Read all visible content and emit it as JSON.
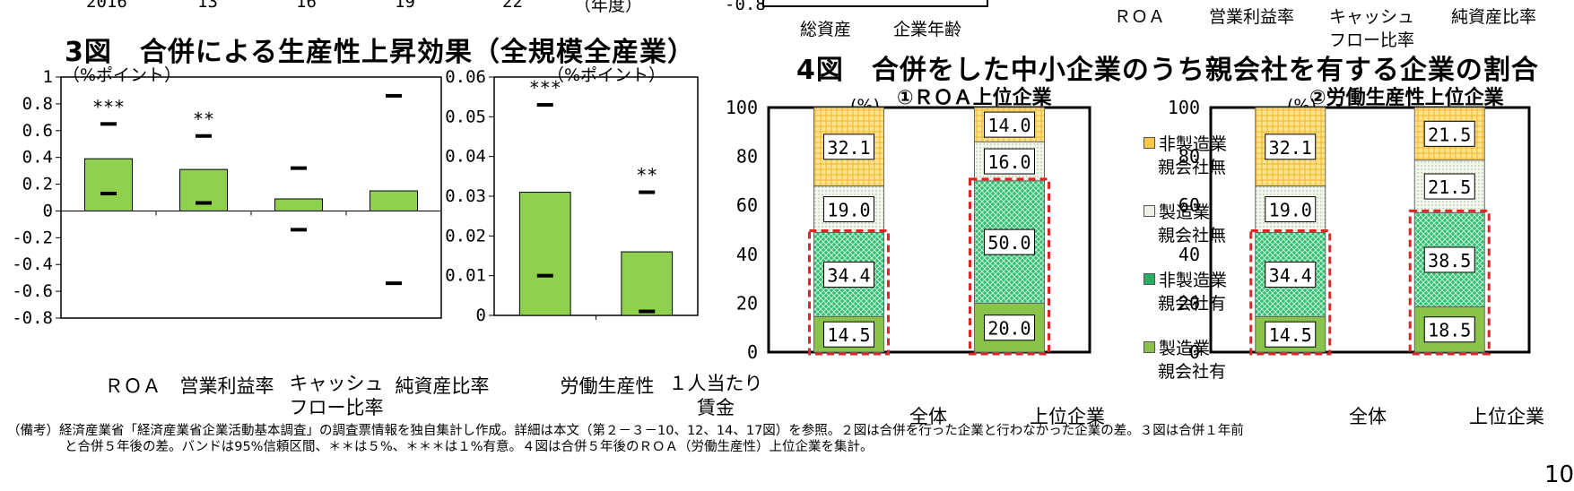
{
  "top_fragment": {
    "axis_ticks": [
      "2016",
      "13",
      "16",
      "19",
      "22",
      "（年度）"
    ],
    "neg_tick": "-0.8",
    "labels_left": [
      "総資産",
      "企業年齢"
    ],
    "labels_right": [
      "ＲＯＡ",
      "営業利益率",
      "キャッシュ",
      "フロー比率",
      "純資産比率"
    ]
  },
  "fig3": {
    "title": "3図　合併による生産性上昇効果（全規模全産業）",
    "unit_left": "（%ポイント）",
    "unit_right": "（%ポイント）"
  },
  "fig4": {
    "title": "4図　合併をした中小企業のうち親会社を有する企業の割合",
    "sub1": "①ＲＯＡ上位企業",
    "sub2": "②労働生産性上位企業",
    "unit": "(%)",
    "legend": [
      {
        "line1": "非製造業",
        "line2": "親会社無",
        "color": "#f7c948"
      },
      {
        "line1": "製造業",
        "line2": "親会社無",
        "color": "#e8efd8"
      },
      {
        "line1": "非製造業",
        "line2": "親会社有",
        "color": "#27ae60"
      },
      {
        "line1": "製造業",
        "line2": "親会社有",
        "color": "#8ac34a"
      }
    ]
  },
  "note": {
    "line1": "（備考）経済産業省「経済産業省企業活動基本調査」の調査票情報を独自集計し作成。詳細は本文（第２－３－10、12、14、17図）を参照。２図は合併を行った企業と行わなかった企業の差。３図は合併１年前",
    "line2": "と合併５年後の差。バンドは95%信頼区間、＊＊は５%、＊＊＊は１%有意。４図は合併５年後のＲＯＡ（労働生産性）上位企業を集計。"
  },
  "page_number": "10",
  "chart_data": [
    {
      "type": "bar",
      "categories": [
        "ＲＯＡ",
        "営業利益率",
        "キャッシュ\nフロー比率",
        "純資産比率"
      ],
      "values": [
        0.39,
        0.31,
        0.09,
        0.15
      ],
      "ci_low": [
        0.13,
        0.06,
        -0.14,
        -0.54
      ],
      "ci_high": [
        0.65,
        0.56,
        0.32,
        0.86
      ],
      "significance": [
        "***",
        "**",
        "",
        ""
      ],
      "ylim": [
        -0.8,
        1.0
      ],
      "yticks": [
        "1",
        "0.8",
        "0.6",
        "0.4",
        "0.2",
        "0",
        "-0.2",
        "-0.4",
        "-0.6",
        "-0.8"
      ],
      "ylabel": "（%ポイント）",
      "color": "#8fd14f"
    },
    {
      "type": "bar",
      "categories": [
        "労働生産性",
        "１人当たり\n賃金"
      ],
      "values": [
        0.031,
        0.016
      ],
      "ci_low": [
        0.01,
        0.001
      ],
      "ci_high": [
        0.053,
        0.031
      ],
      "significance": [
        "***",
        "**"
      ],
      "ylim": [
        0,
        0.06
      ],
      "yticks": [
        "0.06",
        "0.05",
        "0.04",
        "0.03",
        "0.02",
        "0.01",
        "0"
      ],
      "ylabel": "（%ポイント）",
      "color": "#8fd14f"
    },
    {
      "type": "bar",
      "stacked": true,
      "subtitle": "①ＲＯＡ上位企業",
      "categories": [
        "全体",
        "上位企業"
      ],
      "series": [
        {
          "name": "製造業親会社有",
          "values": [
            14.5,
            20.0
          ]
        },
        {
          "name": "非製造業親会社有",
          "values": [
            34.4,
            50.0
          ]
        },
        {
          "name": "製造業親会社無",
          "values": [
            19.0,
            16.0
          ]
        },
        {
          "name": "非製造業親会社無",
          "values": [
            32.1,
            14.0
          ]
        }
      ],
      "ylim": [
        0,
        100
      ],
      "yticks": [
        "100",
        "80",
        "60",
        "40",
        "20",
        "0"
      ],
      "ylabel": "(%)"
    },
    {
      "type": "bar",
      "stacked": true,
      "subtitle": "②労働生産性上位企業",
      "categories": [
        "全体",
        "上位企業"
      ],
      "series": [
        {
          "name": "製造業親会社有",
          "values": [
            14.5,
            18.5
          ]
        },
        {
          "name": "非製造業親会社有",
          "values": [
            34.4,
            38.5
          ]
        },
        {
          "name": "製造業親会社無",
          "values": [
            19.0,
            21.5
          ]
        },
        {
          "name": "非製造業親会社無",
          "values": [
            32.1,
            21.5
          ]
        }
      ],
      "ylim": [
        0,
        100
      ],
      "yticks": [
        "100",
        "80",
        "60",
        "40",
        "20",
        "0"
      ],
      "ylabel": "(%)"
    }
  ]
}
